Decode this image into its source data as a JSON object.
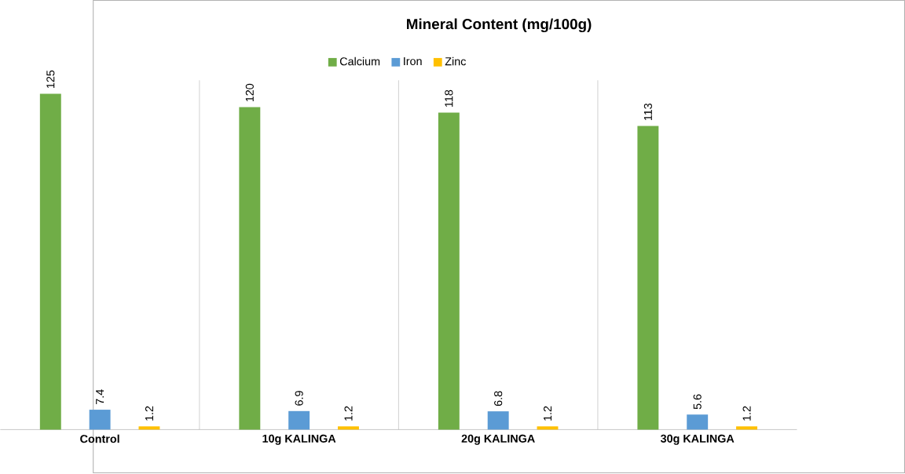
{
  "chart_data": {
    "type": "bar",
    "title": "Mineral Content (mg/100g)",
    "categories": [
      "Control",
      "10g KALINGA",
      "20g KALINGA",
      "30g KALINGA"
    ],
    "series": [
      {
        "name": "Calcium",
        "color": "#70ad47",
        "values": [
          125,
          120,
          118,
          113
        ]
      },
      {
        "name": "Iron",
        "color": "#5b9bd5",
        "values": [
          7.4,
          6.9,
          6.8,
          5.6
        ]
      },
      {
        "name": "Zinc",
        "color": "#ffc000",
        "values": [
          1.2,
          1.2,
          1.2,
          1.2
        ]
      }
    ],
    "data_labels": true,
    "legend": "top",
    "grid": "x"
  }
}
